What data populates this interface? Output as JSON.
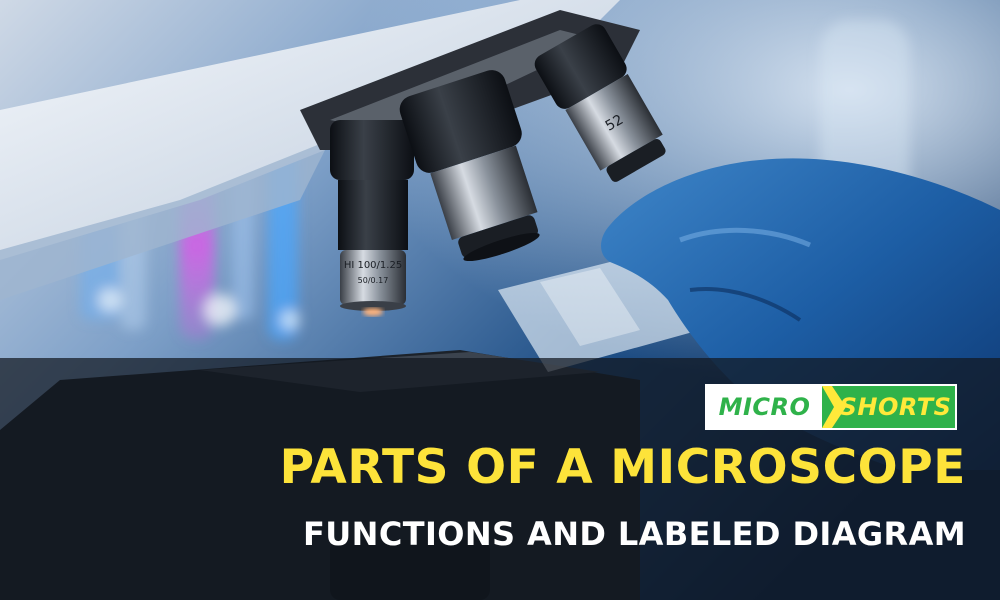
{
  "photo": {
    "subject": "microscope-with-gloved-hand-holding-slide",
    "objective_front_label": "HI 100/1.25",
    "objective_front_sub": "50/0.17",
    "objective_back_label": "52"
  },
  "logo": {
    "left_text": "MICRO",
    "right_text": "SHORTS",
    "green": "#2fb24a",
    "yellow": "#ffe93a"
  },
  "title": "PARTS OF A MICROSCOPE",
  "subtitle": "FUNCTIONS AND LABELED DIAGRAM",
  "colors": {
    "title": "#fde33a",
    "subtitle": "#ffffff",
    "band": "#121820"
  }
}
